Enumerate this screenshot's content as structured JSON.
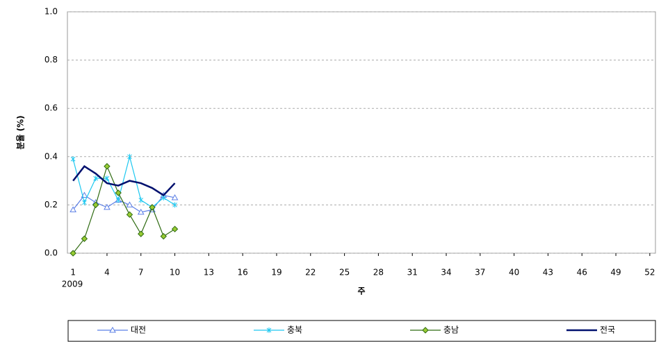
{
  "chart_data": {
    "type": "line",
    "y_label": "분율 (%)",
    "x_label": "주",
    "x_sublabel": "2009",
    "x": [
      1,
      2,
      3,
      4,
      5,
      6,
      7,
      8,
      9,
      10
    ],
    "xlim": [
      0.5,
      52.5
    ],
    "xticks": [
      1,
      4,
      7,
      10,
      13,
      16,
      19,
      22,
      25,
      28,
      31,
      34,
      37,
      40,
      43,
      46,
      49,
      52
    ],
    "ylim": [
      0,
      1
    ],
    "yticks": [
      {
        "value": 0,
        "label": "0.0"
      },
      0.2,
      0.4,
      0.6,
      0.8,
      {
        "value": 1,
        "label": "1.0"
      }
    ],
    "grid": true,
    "legend": "bottom",
    "series": [
      {
        "name": "대전",
        "color": "#5b7fe6",
        "marker": "triangle",
        "values": [
          0.18,
          0.24,
          0.21,
          0.19,
          0.22,
          0.2,
          0.17,
          0.18,
          0.24,
          0.23
        ]
      },
      {
        "name": "충북",
        "color": "#1ec8f0",
        "marker": "star",
        "values": [
          0.39,
          0.21,
          0.31,
          0.31,
          0.22,
          0.4,
          0.22,
          0.19,
          0.23,
          0.2
        ]
      },
      {
        "name": "충남",
        "color": "#2f6b12",
        "marker": "diamond",
        "values": [
          0,
          0.06,
          0.2,
          0.36,
          0.25,
          0.16,
          0.08,
          0.19,
          0.07,
          0.1
        ]
      },
      {
        "name": "전국",
        "color": "#00106e",
        "marker": "none",
        "values": [
          0.3,
          0.36,
          0.33,
          0.29,
          0.28,
          0.3,
          0.29,
          0.27,
          0.24,
          0.29
        ]
      }
    ]
  }
}
